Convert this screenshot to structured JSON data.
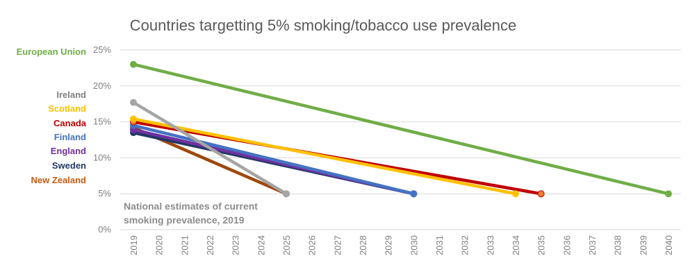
{
  "chart_data": {
    "type": "line",
    "title": "Countries targetting 5% smoking/tobacco use prevalence",
    "xlabel": "",
    "ylabel": "",
    "x": [
      2019,
      2020,
      2021,
      2022,
      2023,
      2024,
      2025,
      2026,
      2027,
      2028,
      2029,
      2030,
      2031,
      2032,
      2033,
      2034,
      2035,
      2036,
      2037,
      2038,
      2039,
      2040
    ],
    "xlim": [
      2019,
      2040
    ],
    "ylim": [
      0,
      25
    ],
    "yticks": [
      0,
      5,
      10,
      15,
      20,
      25
    ],
    "ytick_labels": [
      "0%",
      "5%",
      "10%",
      "15%",
      "20%",
      "25%"
    ],
    "grid": true,
    "legend_position": "left",
    "annotation": [
      "National estimates of current",
      "smoking prevalence, 2019"
    ],
    "series": [
      {
        "name": "European Union",
        "color": "#70AD47",
        "marker_fill": "#70AD47",
        "points": [
          [
            2019,
            23.0
          ],
          [
            2040,
            5.0
          ]
        ]
      },
      {
        "name": "Ireland",
        "color": "#A5A5A5",
        "marker_fill": "#A5A5A5",
        "points": [
          [
            2019,
            17.7
          ],
          [
            2025,
            5.0
          ]
        ]
      },
      {
        "name": "Scotland",
        "color": "#FFC000",
        "marker_fill": "#FFC000",
        "points": [
          [
            2019,
            15.4
          ],
          [
            2034,
            5.0
          ]
        ]
      },
      {
        "name": "Canada",
        "color": "#C00000",
        "marker_fill": "#ED7D31",
        "points": [
          [
            2019,
            15.0
          ],
          [
            2035,
            5.0
          ]
        ]
      },
      {
        "name": "Finland",
        "color": "#4472C4",
        "marker_fill": "#4472C4",
        "points": [
          [
            2019,
            14.5
          ],
          [
            2030,
            5.0
          ]
        ]
      },
      {
        "name": "England",
        "color": "#7030A0",
        "marker_fill": "#7030A0",
        "points": [
          [
            2019,
            13.9
          ],
          [
            2030,
            5.0
          ]
        ]
      },
      {
        "name": "Sweden",
        "color": "#203864",
        "marker_fill": "#203864",
        "points": [
          [
            2019,
            13.5
          ],
          [
            2030,
            5.0
          ]
        ]
      },
      {
        "name": "New Zealand",
        "color": "#9E480E",
        "marker_fill": "#9E480E",
        "points": [
          [
            2019,
            14.2
          ],
          [
            2025,
            5.0
          ]
        ]
      }
    ],
    "legend": [
      {
        "name": "European Union",
        "color": "#70AD47",
        "anchor_value": 25
      },
      {
        "name": "Ireland",
        "color": "#7F7F7F"
      },
      {
        "name": "Scotland",
        "color": "#FFC000"
      },
      {
        "name": "Canada",
        "color": "#C00000"
      },
      {
        "name": "Finland",
        "color": "#4472C4"
      },
      {
        "name": "England",
        "color": "#7030A0"
      },
      {
        "name": "Sweden",
        "color": "#203864"
      },
      {
        "name": "New Zealand",
        "color": "#C55A11"
      }
    ]
  }
}
